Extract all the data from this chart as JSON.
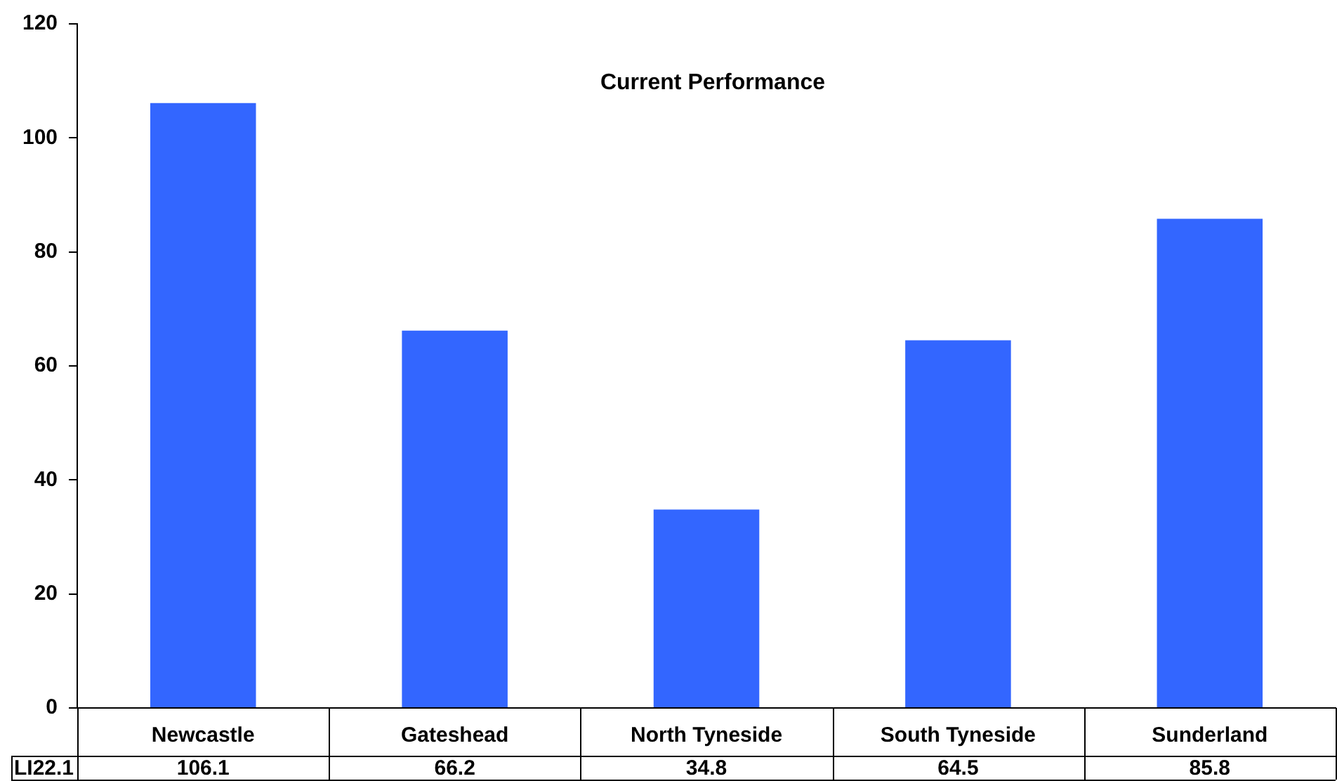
{
  "chart_data": {
    "type": "bar",
    "title": "Current Performance",
    "categories": [
      "Newcastle",
      "Gateshead",
      "North Tyneside",
      "South Tyneside",
      "Sunderland"
    ],
    "series": [
      {
        "name": "LI22.1",
        "color": "#3366ff",
        "values": [
          106.1,
          66.2,
          34.8,
          64.5,
          85.8
        ]
      }
    ],
    "ylim": [
      0,
      120
    ],
    "yticks": [
      0,
      20,
      40,
      60,
      80,
      100,
      120
    ],
    "grid": false,
    "legend": false,
    "data_labels": true
  }
}
